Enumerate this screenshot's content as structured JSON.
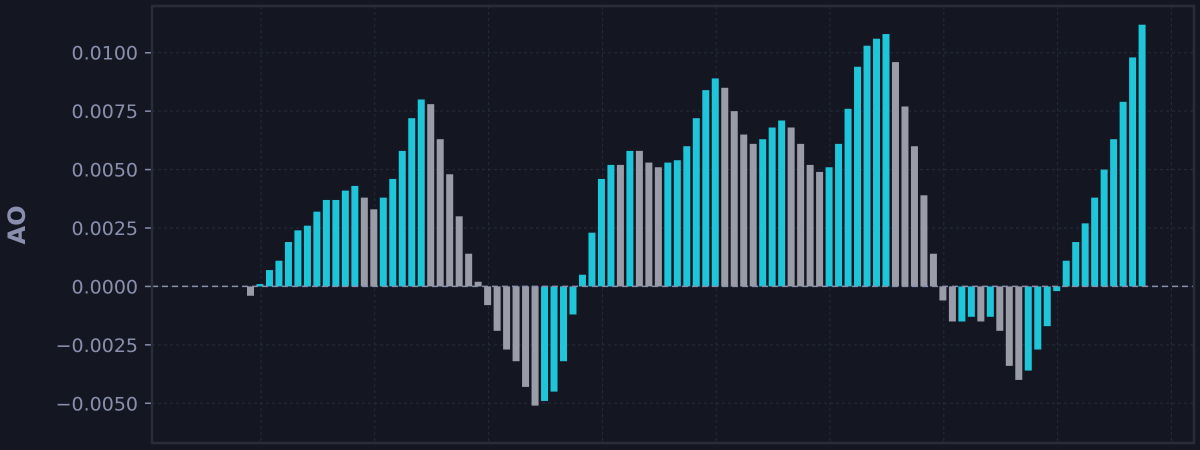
{
  "chart_data": {
    "type": "bar",
    "title": "",
    "xlabel": "",
    "ylabel": "AO",
    "ylim": [
      -0.0067,
      0.012
    ],
    "yticks": [
      0.01,
      0.0075,
      0.005,
      0.0025,
      0.0,
      -0.0025,
      -0.005
    ],
    "ytick_labels": [
      "0.0100",
      "0.0075",
      "0.0050",
      "0.0025",
      "0.0000",
      "−0.0025",
      "−0.0050"
    ],
    "grid": true,
    "zero_line": true,
    "colors": {
      "background": "#141722",
      "frame": "#2a2d37",
      "grid": "#262b3b",
      "zero_line": "#8a8fae",
      "rising": "#1fc5d8",
      "falling": "#9a9ca8",
      "text": "#8a8fae"
    },
    "values": [
      -0.0004,
      0.0001,
      0.0007,
      0.0011,
      0.0019,
      0.0024,
      0.0026,
      0.0032,
      0.0037,
      0.0037,
      0.0041,
      0.0043,
      0.0038,
      0.0033,
      0.0038,
      0.0046,
      0.0058,
      0.0072,
      0.008,
      0.0078,
      0.0063,
      0.0048,
      0.003,
      0.0014,
      0.0002,
      -0.0008,
      -0.0019,
      -0.0027,
      -0.0032,
      -0.0043,
      -0.0051,
      -0.0049,
      -0.0045,
      -0.0032,
      -0.0012,
      0.0005,
      0.0023,
      0.0046,
      0.0052,
      0.0052,
      0.0058,
      0.0058,
      0.0053,
      0.0051,
      0.0053,
      0.0054,
      0.006,
      0.0072,
      0.0084,
      0.0089,
      0.0085,
      0.0075,
      0.0065,
      0.0061,
      0.0063,
      0.0068,
      0.0071,
      0.0068,
      0.0061,
      0.0052,
      0.0049,
      0.0051,
      0.0061,
      0.0076,
      0.0094,
      0.0103,
      0.0106,
      0.0108,
      0.0096,
      0.0077,
      0.006,
      0.0039,
      0.0014,
      -0.0006,
      -0.0015,
      -0.0015,
      -0.0013,
      -0.0015,
      -0.0013,
      -0.0019,
      -0.0034,
      -0.004,
      -0.0036,
      -0.0027,
      -0.0017,
      -0.0002,
      0.0011,
      0.0019,
      0.0027,
      0.0038,
      0.005,
      0.0063,
      0.0079,
      0.0098,
      0.0112
    ],
    "bar_colors": [
      "falling",
      "rising",
      "rising",
      "rising",
      "rising",
      "rising",
      "rising",
      "rising",
      "rising",
      "rising",
      "rising",
      "rising",
      "falling",
      "falling",
      "rising",
      "rising",
      "rising",
      "rising",
      "rising",
      "falling",
      "falling",
      "falling",
      "falling",
      "falling",
      "falling",
      "falling",
      "falling",
      "falling",
      "falling",
      "falling",
      "falling",
      "rising",
      "rising",
      "rising",
      "rising",
      "rising",
      "rising",
      "rising",
      "rising",
      "falling",
      "rising",
      "falling",
      "falling",
      "falling",
      "rising",
      "rising",
      "rising",
      "rising",
      "rising",
      "rising",
      "falling",
      "falling",
      "falling",
      "falling",
      "rising",
      "rising",
      "rising",
      "falling",
      "falling",
      "falling",
      "falling",
      "rising",
      "rising",
      "rising",
      "rising",
      "rising",
      "rising",
      "rising",
      "falling",
      "falling",
      "falling",
      "falling",
      "falling",
      "falling",
      "falling",
      "rising",
      "rising",
      "falling",
      "rising",
      "falling",
      "falling",
      "falling",
      "rising",
      "rising",
      "rising",
      "rising",
      "rising",
      "rising",
      "rising",
      "rising",
      "rising",
      "rising",
      "rising",
      "rising",
      "rising"
    ]
  }
}
